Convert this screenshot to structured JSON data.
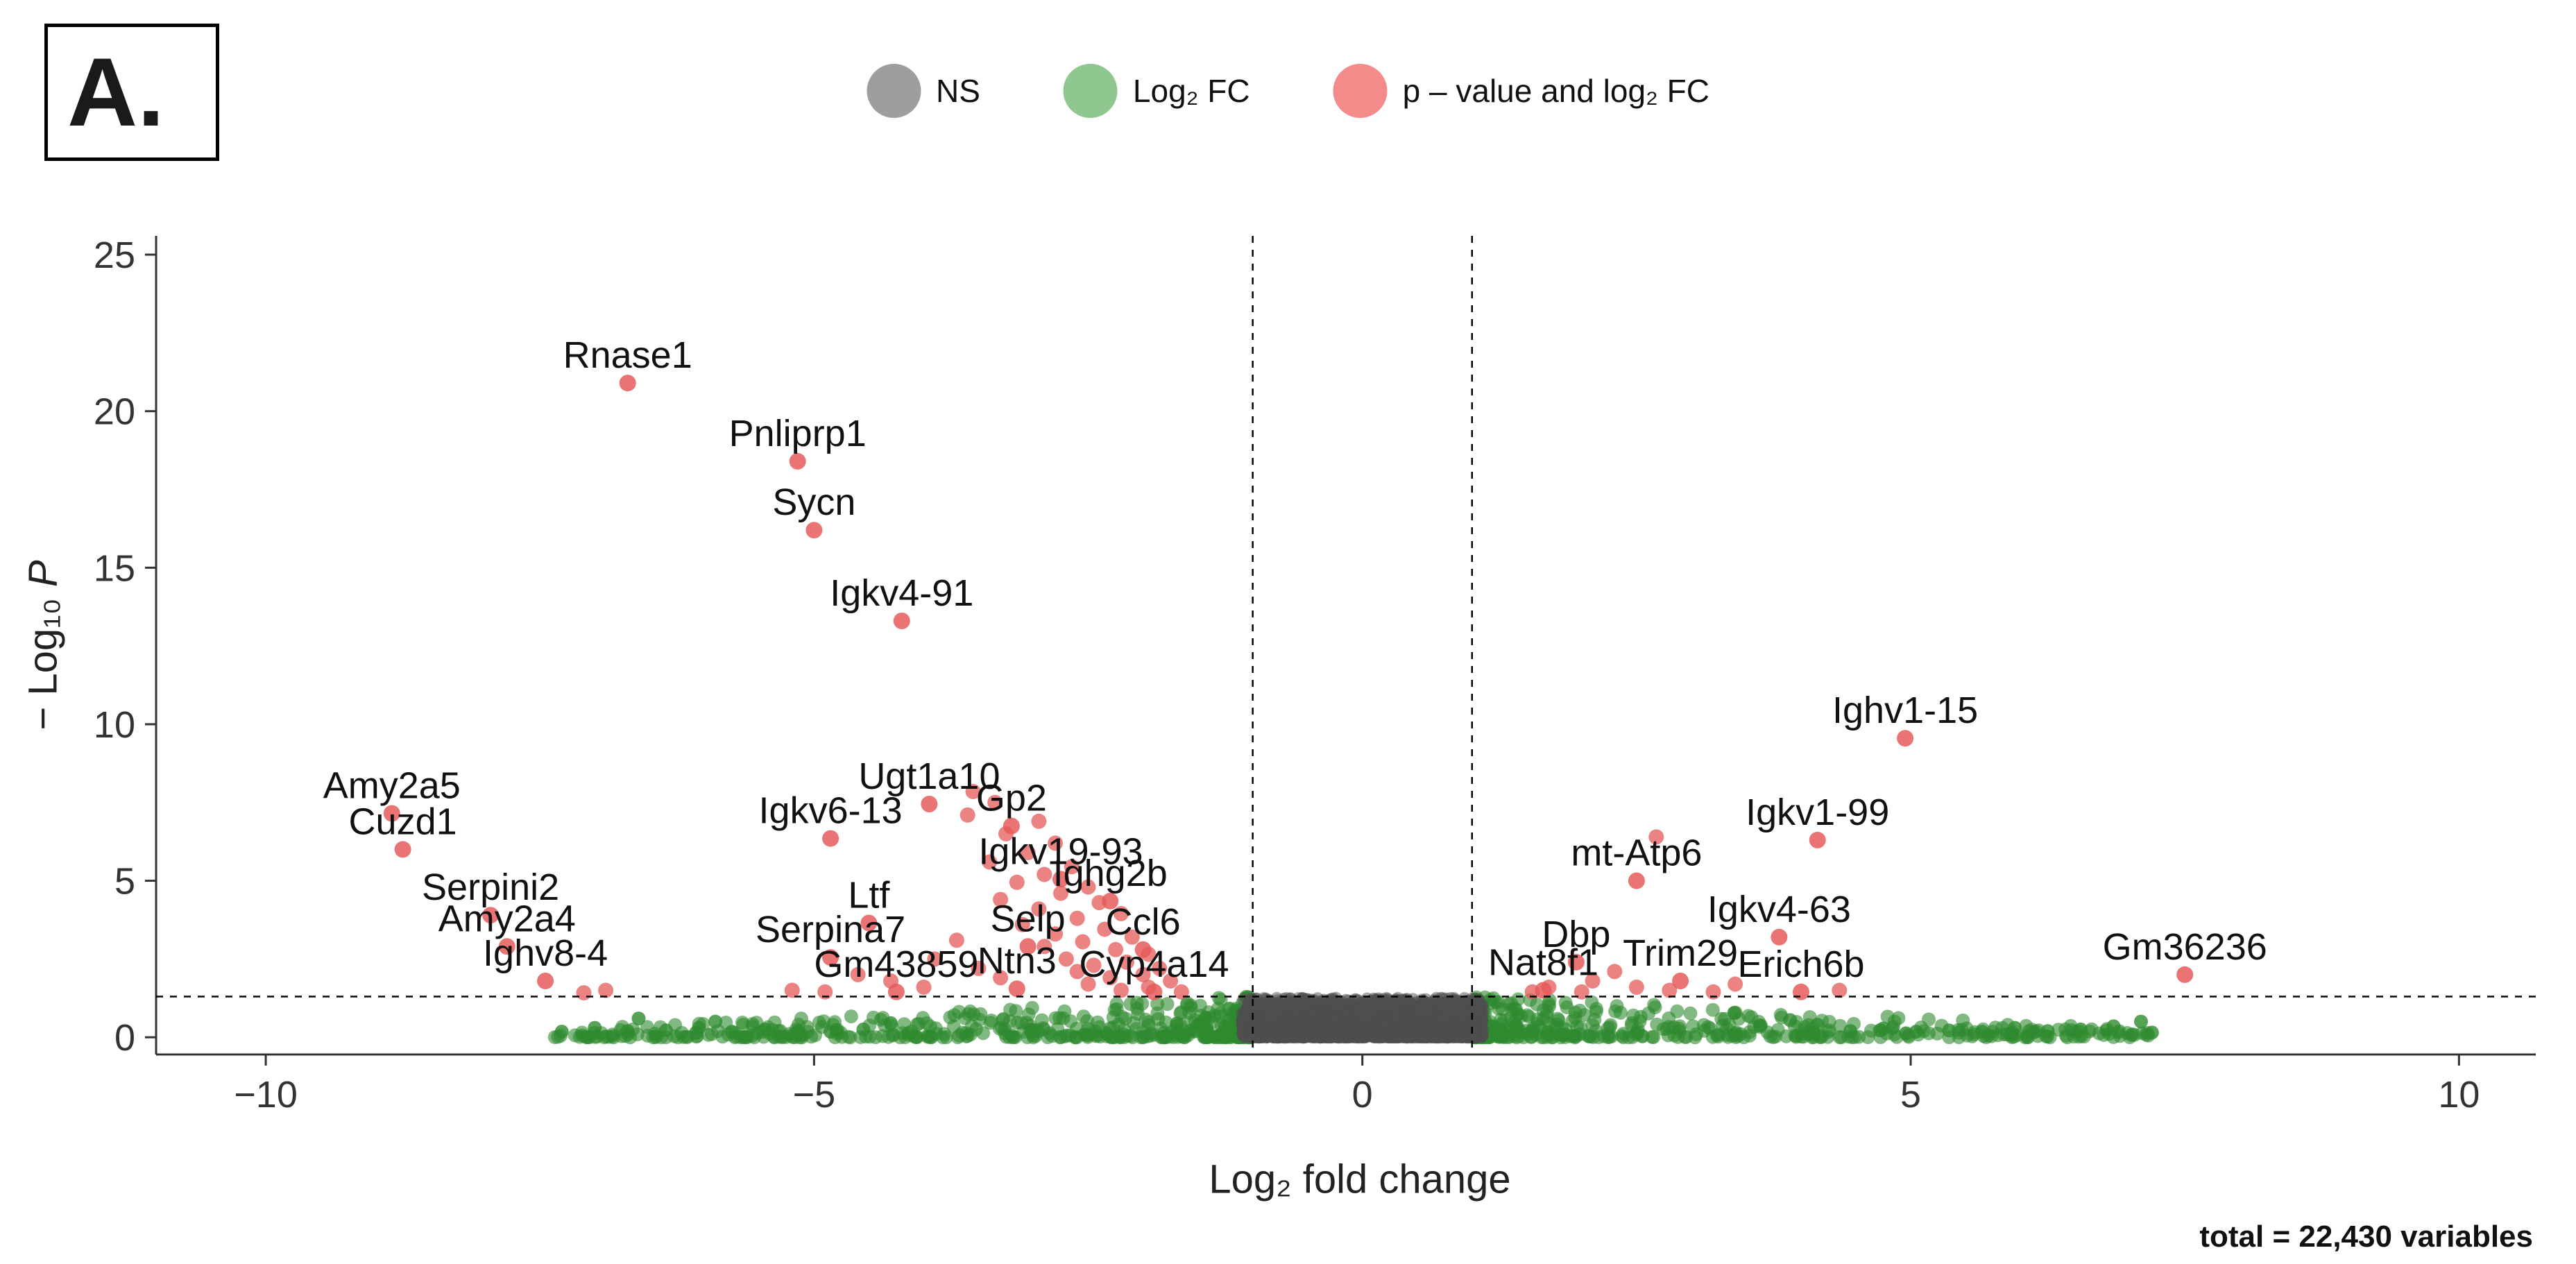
{
  "panel_label": "A.",
  "caption": "total = 22,430 variables",
  "legend": {
    "items": [
      {
        "name": "ns",
        "label": "NS",
        "color": "#9e9e9e"
      },
      {
        "name": "log2fc",
        "label": "Log₂ FC",
        "color": "#90c790"
      },
      {
        "name": "p-and-log2fc",
        "label": "p – value and log₂ FC",
        "color": "#f38b8b"
      }
    ]
  },
  "chart_data": {
    "type": "scatter",
    "subtype": "volcano",
    "xlabel": "Log₂ fold change",
    "ylabel_prefix": "− Log₁₀ ",
    "ylabel_italic": "P",
    "xlim": [
      -11.0,
      10.7
    ],
    "ylim": [
      -0.55,
      25.6
    ],
    "x_ticks": {
      "values": [
        -10,
        -5,
        0,
        5,
        10
      ],
      "labels": [
        "−10",
        "−5",
        "0",
        "5",
        "10"
      ]
    },
    "y_ticks": {
      "values": [
        0,
        5,
        10,
        15,
        20,
        25
      ],
      "labels": [
        "0",
        "5",
        "10",
        "15",
        "20",
        "25"
      ]
    },
    "cutoffs": {
      "hline_y": 1.3,
      "vlines_x": [
        -1,
        1
      ]
    },
    "colors": {
      "ns": "#4d4d4d",
      "fc": "#2e8b2e",
      "sig": "#e65a5a",
      "axis": "#333333",
      "label_text": "#111111"
    },
    "labeled_genes": [
      {
        "gene": "Rnase1",
        "x": -6.7,
        "y": 20.9
      },
      {
        "gene": "Pnliprp1",
        "x": -5.15,
        "y": 18.4
      },
      {
        "gene": "Sycn",
        "x": -5.0,
        "y": 16.2
      },
      {
        "gene": "Igkv4-91",
        "x": -4.2,
        "y": 13.3
      },
      {
        "gene": "Ighv1-15",
        "x": 4.95,
        "y": 9.55
      },
      {
        "gene": "Amy2a5",
        "x": -8.85,
        "y": 7.15
      },
      {
        "gene": "Ugt1a10",
        "x": -3.95,
        "y": 7.45
      },
      {
        "gene": "Gp2",
        "x": -3.2,
        "y": 6.75
      },
      {
        "gene": "Igkv6-13",
        "x": -4.85,
        "y": 6.35
      },
      {
        "gene": "Igkv1-99",
        "x": 4.15,
        "y": 6.3
      },
      {
        "gene": "Cuzd1",
        "x": -8.75,
        "y": 6.0
      },
      {
        "gene": "Igkv19-93",
        "x": -2.75,
        "y": 5.05
      },
      {
        "gene": "mt-Atp6",
        "x": 2.5,
        "y": 5.0
      },
      {
        "gene": "Serpini2",
        "x": -7.95,
        "y": 3.9
      },
      {
        "gene": "Ighg2b",
        "x": -2.3,
        "y": 4.35
      },
      {
        "gene": "Ltf",
        "x": -4.5,
        "y": 3.65
      },
      {
        "gene": "Igkv4-63",
        "x": 3.8,
        "y": 3.2
      },
      {
        "gene": "Amy2a4",
        "x": -7.8,
        "y": 2.9
      },
      {
        "gene": "Selp",
        "x": -3.05,
        "y": 2.9
      },
      {
        "gene": "Ccl6",
        "x": -2.0,
        "y": 2.8
      },
      {
        "gene": "Serpina7",
        "x": -4.85,
        "y": 2.55
      },
      {
        "gene": "Dbp",
        "x": 1.95,
        "y": 2.4
      },
      {
        "gene": "Trim29",
        "x": 2.9,
        "y": 1.8
      },
      {
        "gene": "Gm36236",
        "x": 7.5,
        "y": 2.0
      },
      {
        "gene": "Ighv8-4",
        "x": -7.45,
        "y": 1.8
      },
      {
        "gene": "Gm43859",
        "x": -4.25,
        "y": 1.45
      },
      {
        "gene": "Ntn3",
        "x": -3.15,
        "y": 1.55
      },
      {
        "gene": "Cyp4a14",
        "x": -1.9,
        "y": 1.45
      },
      {
        "gene": "Nat8f1",
        "x": 1.65,
        "y": 1.5
      },
      {
        "gene": "Erich6b",
        "x": 4.0,
        "y": 1.45
      }
    ],
    "sig_points": [
      [
        -3.55,
        7.85
      ],
      [
        -3.35,
        7.5
      ],
      [
        -3.6,
        7.1
      ],
      [
        -2.95,
        6.9
      ],
      [
        -3.25,
        6.5
      ],
      [
        -2.8,
        6.2
      ],
      [
        -3.05,
        5.9
      ],
      [
        -3.4,
        5.6
      ],
      [
        -2.65,
        5.45
      ],
      [
        -2.9,
        5.2
      ],
      [
        -3.15,
        4.95
      ],
      [
        -2.5,
        4.8
      ],
      [
        -2.75,
        4.6
      ],
      [
        -3.3,
        4.4
      ],
      [
        -2.4,
        4.3
      ],
      [
        -2.95,
        4.1
      ],
      [
        -2.2,
        3.95
      ],
      [
        -2.6,
        3.8
      ],
      [
        -3.1,
        3.6
      ],
      [
        -2.35,
        3.45
      ],
      [
        -2.8,
        3.3
      ],
      [
        -2.1,
        3.2
      ],
      [
        -2.55,
        3.05
      ],
      [
        -2.9,
        2.9
      ],
      [
        -2.25,
        2.8
      ],
      [
        -1.95,
        2.65
      ],
      [
        -2.7,
        2.5
      ],
      [
        -2.15,
        2.4
      ],
      [
        -2.45,
        2.3
      ],
      [
        -1.85,
        2.2
      ],
      [
        -2.6,
        2.1
      ],
      [
        -2.0,
        2.0
      ],
      [
        -2.3,
        1.9
      ],
      [
        -1.75,
        1.8
      ],
      [
        -2.5,
        1.7
      ],
      [
        -1.95,
        1.6
      ],
      [
        -2.2,
        1.5
      ],
      [
        -1.65,
        1.45
      ],
      [
        -3.7,
        3.1
      ],
      [
        -3.9,
        2.5
      ],
      [
        -3.5,
        2.2
      ],
      [
        -3.3,
        1.9
      ],
      [
        -4.6,
        2.0
      ],
      [
        -4.3,
        1.8
      ],
      [
        -4.0,
        1.6
      ],
      [
        -4.9,
        1.45
      ],
      [
        -5.2,
        1.5
      ],
      [
        -6.9,
        1.5
      ],
      [
        -7.1,
        1.42
      ],
      [
        2.68,
        6.4
      ],
      [
        2.3,
        2.1
      ],
      [
        2.1,
        1.8
      ],
      [
        2.5,
        1.6
      ],
      [
        2.8,
        1.5
      ],
      [
        3.2,
        1.45
      ],
      [
        1.7,
        1.6
      ],
      [
        1.55,
        1.45
      ],
      [
        4.35,
        1.5
      ],
      [
        3.4,
        1.7
      ],
      [
        2.0,
        1.45
      ]
    ],
    "fc_outlier_points": [
      [
        -7.3,
        0.18
      ],
      [
        -7.0,
        0.3
      ],
      [
        -6.7,
        0.2
      ],
      [
        -6.35,
        0.22
      ],
      [
        -6.05,
        0.3
      ],
      [
        -5.75,
        0.18
      ],
      [
        -5.45,
        0.25
      ],
      [
        -5.15,
        0.2
      ],
      [
        -4.85,
        0.18
      ],
      [
        -4.55,
        0.25
      ],
      [
        -6.6,
        0.6
      ],
      [
        -5.9,
        0.5
      ],
      [
        -4.3,
        0.45
      ],
      [
        4.45,
        0.2
      ],
      [
        4.75,
        0.28
      ],
      [
        5.05,
        0.18
      ],
      [
        5.35,
        0.22
      ],
      [
        5.65,
        0.18
      ],
      [
        5.95,
        0.3
      ],
      [
        6.25,
        0.2
      ],
      [
        6.55,
        0.25
      ],
      [
        6.85,
        0.35
      ],
      [
        7.1,
        0.5
      ],
      [
        4.15,
        0.4
      ],
      [
        3.9,
        0.55
      ],
      [
        7.2,
        0.15
      ]
    ],
    "clouds": [
      {
        "series": "fc",
        "count": 520,
        "x0": -1.02,
        "x1": -7.4,
        "ymax": 1.32,
        "xpow": 2.4,
        "ypow": 2.6,
        "r": 10,
        "opacity": 0.6
      },
      {
        "series": "fc",
        "count": 460,
        "x0": 1.02,
        "x1": 7.2,
        "ymax": 1.32,
        "xpow": 2.4,
        "ypow": 2.6,
        "r": 10,
        "opacity": 0.6
      },
      {
        "series": "ns",
        "count": 2300,
        "x0": -1.1,
        "x1": 1.1,
        "ymax": 1.25,
        "xpow": 1.0,
        "ypow": 2.0,
        "r": 9,
        "opacity": 0.5
      }
    ]
  }
}
